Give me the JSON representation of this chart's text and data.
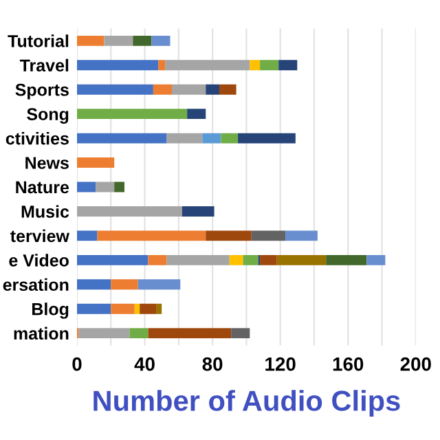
{
  "chart_data": {
    "type": "bar",
    "orientation": "horizontal",
    "stacked": true,
    "xlabel": "Number of Audio Clips",
    "categories": [
      "Tutorial",
      "Travel",
      "Sports",
      "Song",
      "ctivities",
      "News",
      "Nature",
      "Music",
      "terview",
      "e Video",
      "ersation",
      "Blog",
      "mation"
    ],
    "series": [
      {
        "color": "#4472c4",
        "values": [
          null,
          48,
          45,
          null,
          53,
          null,
          11,
          null,
          12,
          42,
          20,
          20,
          null
        ]
      },
      {
        "color": "#ed7d31",
        "values": [
          16,
          4,
          11,
          null,
          null,
          22,
          null,
          null,
          64,
          11,
          16,
          14,
          1
        ]
      },
      {
        "color": "#a5a5a5",
        "values": [
          17,
          50,
          20,
          null,
          21,
          null,
          11,
          62,
          null,
          37,
          null,
          null,
          30
        ]
      },
      {
        "color": "#ffc000",
        "values": [
          null,
          6,
          null,
          null,
          null,
          null,
          null,
          null,
          null,
          8,
          null,
          3,
          null
        ]
      },
      {
        "color": "#5b9bd5",
        "values": [
          null,
          null,
          null,
          null,
          11,
          null,
          null,
          null,
          null,
          null,
          null,
          null,
          null
        ]
      },
      {
        "color": "#70ad47",
        "values": [
          null,
          11,
          null,
          65,
          10,
          null,
          null,
          null,
          null,
          9,
          null,
          null,
          11
        ]
      },
      {
        "color": "#264478",
        "values": [
          null,
          11,
          8,
          11,
          34,
          null,
          null,
          19,
          null,
          1,
          null,
          null,
          null
        ]
      },
      {
        "color": "#9e480e",
        "values": [
          null,
          null,
          10,
          null,
          null,
          null,
          null,
          null,
          27,
          10,
          null,
          10,
          49
        ]
      },
      {
        "color": "#636363",
        "values": [
          null,
          null,
          null,
          null,
          null,
          null,
          null,
          null,
          20,
          null,
          null,
          null,
          11
        ]
      },
      {
        "color": "#997300",
        "values": [
          null,
          null,
          null,
          null,
          null,
          null,
          null,
          null,
          null,
          29,
          null,
          3,
          null
        ]
      },
      {
        "color": "#43682b",
        "values": [
          11,
          null,
          null,
          null,
          null,
          null,
          6,
          null,
          null,
          24,
          null,
          null,
          null
        ]
      },
      {
        "color": "#698ed0",
        "values": [
          11,
          null,
          null,
          null,
          null,
          null,
          null,
          null,
          19,
          11,
          25,
          null,
          null
        ]
      }
    ],
    "xlim": [
      0,
      200
    ],
    "xticks": [
      0,
      {
        "value": 20,
        "label": null
      },
      40,
      {
        "value": 60,
        "label": null
      },
      80,
      {
        "value": 100,
        "label": null
      },
      120,
      {
        "value": 140,
        "label": null
      },
      160,
      {
        "value": 180,
        "label": null
      },
      200
    ],
    "grid": "x"
  }
}
